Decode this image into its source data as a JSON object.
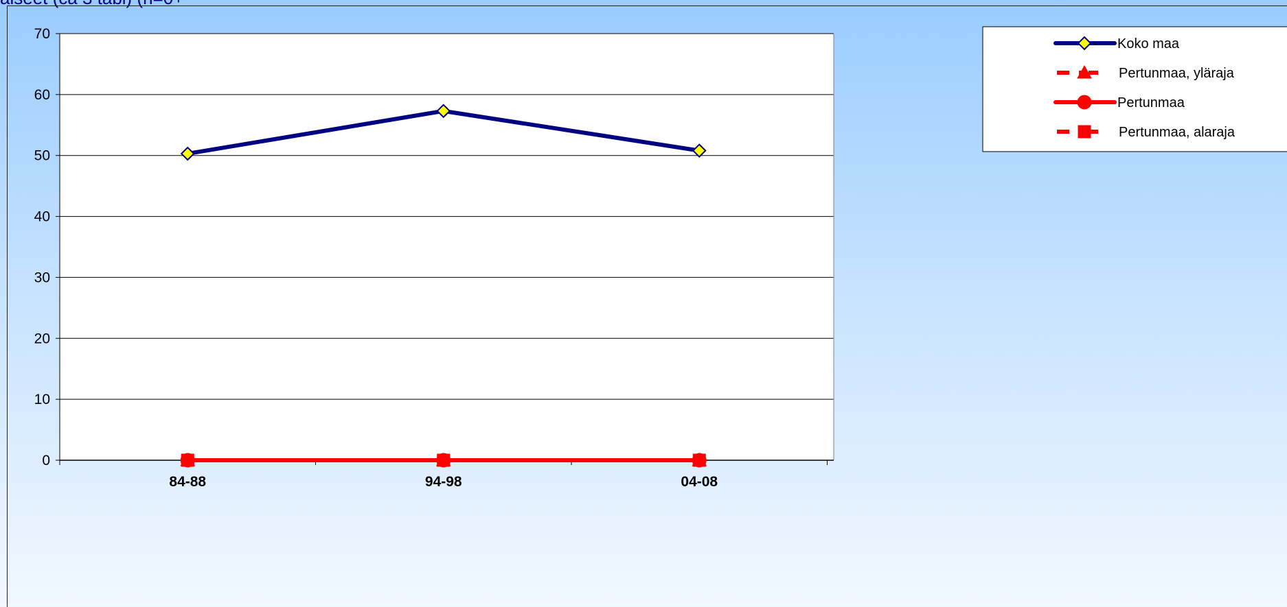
{
  "page": {
    "title": "aiseet (ca 3 tabl) (n=0+"
  },
  "chart_data": {
    "type": "line",
    "categories": [
      "84-88",
      "94-98",
      "04-08"
    ],
    "ylim": [
      0,
      70
    ],
    "yticks": [
      0,
      10,
      20,
      30,
      40,
      50,
      60,
      70
    ],
    "grid": true,
    "legend_position": "top-right",
    "series": [
      {
        "name": "Koko maa",
        "values": [
          50.3,
          57.3,
          50.8
        ],
        "color": "#000080",
        "marker": "diamond",
        "marker_fill": "#FFFF00",
        "dash": "solid"
      },
      {
        "name": "Pertunmaa, yläraja",
        "values": [
          0,
          0,
          0
        ],
        "color": "#FF0000",
        "marker": "triangle",
        "marker_fill": "#FF0000",
        "dash": "dashed"
      },
      {
        "name": "Pertunmaa",
        "values": [
          0,
          0,
          0
        ],
        "color": "#FF0000",
        "marker": "circle",
        "marker_fill": "#FF0000",
        "dash": "solid"
      },
      {
        "name": "Pertunmaa, alaraja",
        "values": [
          0,
          0,
          0
        ],
        "color": "#FF0000",
        "marker": "square",
        "marker_fill": "#FF0000",
        "dash": "dashed"
      }
    ]
  }
}
